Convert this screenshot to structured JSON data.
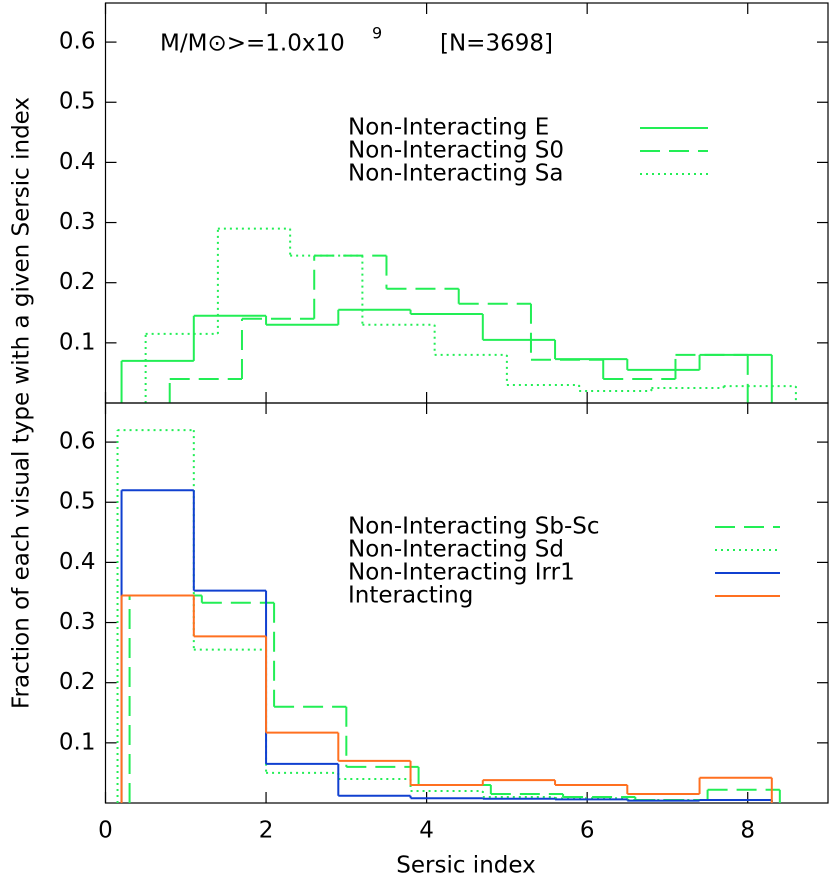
{
  "chart_data": [
    {
      "type": "histogram",
      "ylabel": "Fraction of each  visual type with a given Sersic index",
      "annotation": "M/M⊙>=1.0x10",
      "annotation_exponent": "9",
      "annotation_count": "[N=3698]",
      "xlim": [
        0,
        9
      ],
      "xticks": [
        0,
        2,
        4,
        6,
        8
      ],
      "ylim": [
        0,
        0.665
      ],
      "yticks": [
        0.1,
        0.2,
        0.3,
        0.4,
        0.5,
        0.6
      ],
      "legend": "upper right",
      "series": [
        {
          "name": "Non-Interacting E",
          "color": "#22ee55",
          "dash": "solid",
          "bins": [
            0.2,
            1.1,
            2.0,
            2.9,
            3.8,
            4.7,
            5.6,
            6.5,
            7.4,
            8.3
          ],
          "values": [
            0.07,
            0.145,
            0.13,
            0.155,
            0.148,
            0.105,
            0.073,
            0.055,
            0.08
          ]
        },
        {
          "name": "Non-Interacting S0",
          "color": "#22ee55",
          "dash": "dashed",
          "bins": [
            0.8,
            1.7,
            2.6,
            3.5,
            4.4,
            5.3,
            6.2,
            7.1,
            8.0
          ],
          "values": [
            0.04,
            0.14,
            0.245,
            0.19,
            0.165,
            0.072,
            0.04,
            0.08
          ]
        },
        {
          "name": "Non-Interacting Sa",
          "color": "#22ee55",
          "dash": "dotted",
          "bins": [
            0.5,
            1.4,
            2.3,
            3.2,
            4.1,
            5.0,
            5.9,
            6.8,
            7.7,
            8.6
          ],
          "values": [
            0.115,
            0.29,
            0.245,
            0.13,
            0.08,
            0.03,
            0.02,
            0.025,
            0.028
          ]
        }
      ]
    },
    {
      "type": "histogram",
      "xlabel": "Sersic index",
      "xlim": [
        0,
        9
      ],
      "xticks": [
        0,
        2,
        4,
        6,
        8
      ],
      "ylim": [
        0,
        0.665
      ],
      "yticks": [
        0.1,
        0.2,
        0.3,
        0.4,
        0.5,
        0.6
      ],
      "legend": "right",
      "series": [
        {
          "name": "Non-Interacting Sb-Sc",
          "color": "#22ee55",
          "dash": "dashed",
          "bins": [
            0.3,
            1.2,
            2.1,
            3.0,
            3.9,
            4.8,
            5.7,
            6.6,
            7.5,
            8.4
          ],
          "values": [
            0.345,
            0.333,
            0.16,
            0.06,
            0.03,
            0.015,
            0.01,
            0.005,
            0.022
          ]
        },
        {
          "name": "Non-Interacting Sd",
          "color": "#22ee55",
          "dash": "dotted",
          "bins": [
            0.15,
            1.1,
            2.0,
            2.9,
            3.8,
            4.7,
            5.6,
            6.5,
            7.4,
            8.3
          ],
          "values": [
            0.62,
            0.255,
            0.05,
            0.04,
            0.02,
            0.01,
            0.008,
            0.005,
            0.005
          ]
        },
        {
          "name": "Non-Interacting Irr1",
          "color": "#1040d0",
          "dash": "solid",
          "bins": [
            0.2,
            1.1,
            2.0,
            2.9,
            3.8,
            4.7,
            5.6,
            6.5,
            7.4,
            8.3
          ],
          "values": [
            0.52,
            0.353,
            0.065,
            0.012,
            0.008,
            0.007,
            0.006,
            0.004,
            0.005
          ]
        },
        {
          "name": "Interacting",
          "color": "#ff7020",
          "dash": "solid",
          "bins": [
            0.2,
            1.1,
            2.0,
            2.9,
            3.8,
            4.7,
            5.6,
            6.5,
            7.4,
            8.3
          ],
          "values": [
            0.345,
            0.277,
            0.117,
            0.07,
            0.03,
            0.038,
            0.03,
            0.015,
            0.042
          ]
        }
      ]
    }
  ]
}
